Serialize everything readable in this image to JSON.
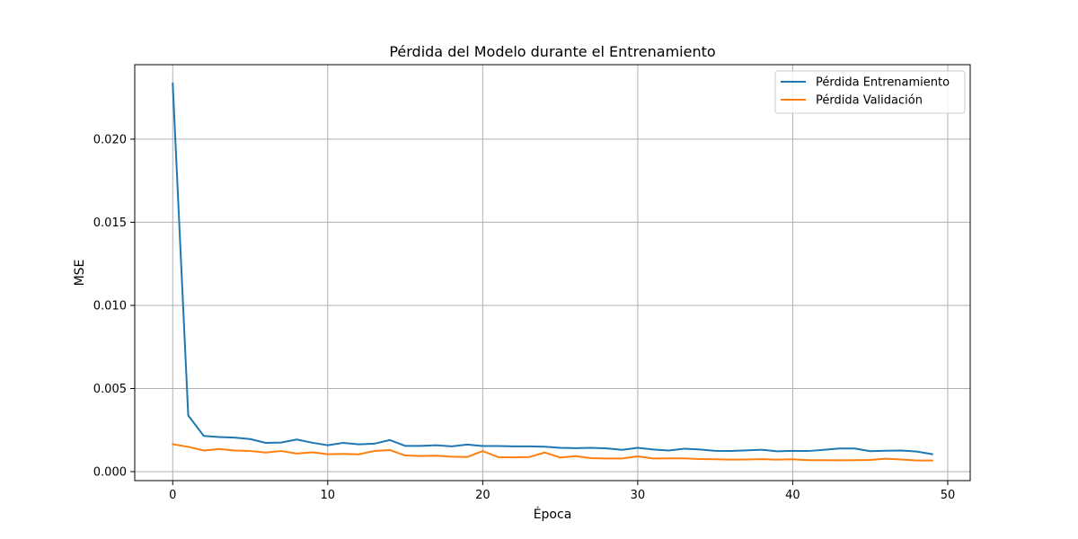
{
  "chart_data": {
    "type": "line",
    "title": "Pérdida del Modelo durante el Entrenamiento",
    "xlabel": "Época",
    "ylabel": "MSE",
    "xlim": [
      -2.45,
      51.45
    ],
    "ylim": [
      -0.00054,
      0.02448
    ],
    "x_ticks": [
      0,
      10,
      20,
      30,
      40,
      50
    ],
    "y_ticks": [
      0.0,
      0.005,
      0.01,
      0.015,
      0.02
    ],
    "y_tick_labels": [
      "0.000",
      "0.005",
      "0.010",
      "0.015",
      "0.020"
    ],
    "grid": true,
    "legend_position": "upper-right",
    "x": [
      0,
      1,
      2,
      3,
      4,
      5,
      6,
      7,
      8,
      9,
      10,
      11,
      12,
      13,
      14,
      15,
      16,
      17,
      18,
      19,
      20,
      21,
      22,
      23,
      24,
      25,
      26,
      27,
      28,
      29,
      30,
      31,
      32,
      33,
      34,
      35,
      36,
      37,
      38,
      39,
      40,
      41,
      42,
      43,
      44,
      45,
      46,
      47,
      48,
      49
    ],
    "series": [
      {
        "name": "Pérdida Entrenamiento",
        "color": "#1f77b4",
        "values": [
          0.02335,
          0.00338,
          0.00215,
          0.00208,
          0.00205,
          0.00196,
          0.00173,
          0.00175,
          0.00193,
          0.00174,
          0.00159,
          0.00173,
          0.00164,
          0.00168,
          0.0019,
          0.00155,
          0.00155,
          0.00159,
          0.00152,
          0.00163,
          0.00154,
          0.00154,
          0.00152,
          0.00152,
          0.0015,
          0.00143,
          0.00141,
          0.00143,
          0.0014,
          0.00131,
          0.00143,
          0.00133,
          0.00127,
          0.00138,
          0.00133,
          0.00125,
          0.00124,
          0.00128,
          0.00132,
          0.00122,
          0.00125,
          0.00124,
          0.00131,
          0.00139,
          0.00139,
          0.00123,
          0.00126,
          0.00127,
          0.00121,
          0.00105
        ]
      },
      {
        "name": "Pérdida Validación",
        "color": "#ff7f0e",
        "values": [
          0.00165,
          0.00149,
          0.00127,
          0.00136,
          0.00127,
          0.00124,
          0.00115,
          0.00124,
          0.00109,
          0.00116,
          0.00105,
          0.00107,
          0.00104,
          0.00124,
          0.0013,
          0.00097,
          0.00094,
          0.00096,
          0.0009,
          0.00088,
          0.00124,
          0.00087,
          0.00086,
          0.00088,
          0.00115,
          0.00085,
          0.00093,
          0.00081,
          0.00079,
          0.00079,
          0.00092,
          0.00079,
          0.0008,
          0.0008,
          0.00076,
          0.00074,
          0.00072,
          0.00073,
          0.00075,
          0.00072,
          0.00074,
          0.00069,
          0.00069,
          0.00068,
          0.00069,
          0.0007,
          0.00078,
          0.00073,
          0.00067,
          0.00067
        ]
      }
    ],
    "colors": {
      "axes": "#000000",
      "grid": "#b0b0b0",
      "legend_border": "#cccccc",
      "background": "#ffffff"
    }
  }
}
